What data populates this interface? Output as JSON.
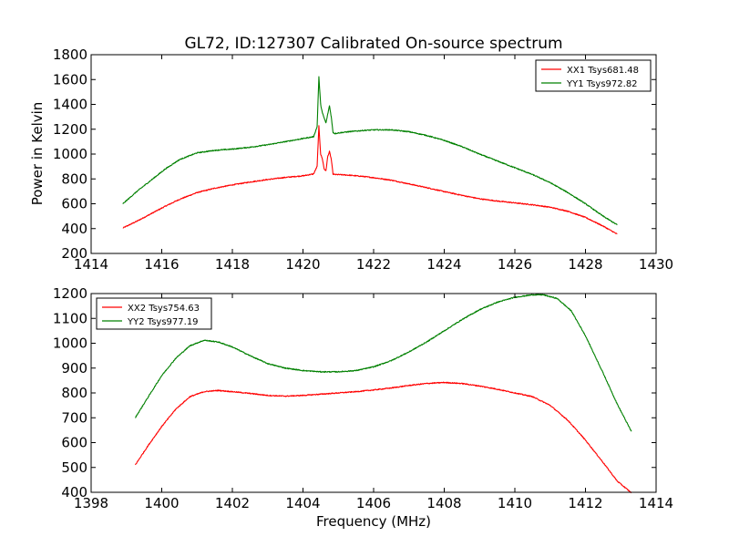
{
  "figure": {
    "title": "GL72, ID:127307 Calibrated On-source spectrum",
    "xlabel": "Frequency (MHz)",
    "ylabel": "Power in Kelvin"
  },
  "chart_data": [
    {
      "type": "line",
      "title": "GL72, ID:127307 Calibrated On-source spectrum",
      "xlabel": "",
      "ylabel": "Power in Kelvin",
      "xlim": [
        1414,
        1430
      ],
      "ylim": [
        200,
        1800
      ],
      "xticks": [
        1414,
        1416,
        1418,
        1420,
        1422,
        1424,
        1426,
        1428,
        1430
      ],
      "yticks": [
        200,
        400,
        600,
        800,
        1000,
        1200,
        1400,
        1600,
        1800
      ],
      "legend": "top-right",
      "grid": false,
      "series": [
        {
          "name": "XX1 Tsys681.48",
          "color": "#ff0000",
          "x": [
            1414.9,
            1415.3,
            1415.7,
            1416.1,
            1416.5,
            1417.0,
            1417.5,
            1418.0,
            1418.5,
            1419.0,
            1419.5,
            1420.0,
            1420.3,
            1420.4,
            1420.45,
            1420.5,
            1420.55,
            1420.6,
            1420.65,
            1420.7,
            1420.75,
            1420.8,
            1420.85,
            1420.9,
            1421.0,
            1421.3,
            1421.7,
            1422.0,
            1422.5,
            1423.0,
            1423.5,
            1424.0,
            1424.5,
            1425.0,
            1425.5,
            1426.0,
            1426.5,
            1427.0,
            1427.5,
            1428.0,
            1428.5,
            1428.9
          ],
          "values": [
            405,
            460,
            520,
            580,
            635,
            690,
            725,
            752,
            775,
            795,
            812,
            825,
            840,
            900,
            1225,
            1000,
            960,
            880,
            865,
            980,
            1020,
            960,
            840,
            835,
            835,
            830,
            820,
            810,
            790,
            760,
            730,
            698,
            668,
            640,
            622,
            607,
            592,
            572,
            540,
            490,
            420,
            355
          ]
        },
        {
          "name": "YY1 Tsys972.82",
          "color": "#008000",
          "x": [
            1414.9,
            1415.3,
            1415.7,
            1416.1,
            1416.5,
            1417.0,
            1417.5,
            1418.0,
            1418.5,
            1419.0,
            1419.5,
            1420.0,
            1420.3,
            1420.4,
            1420.45,
            1420.5,
            1420.55,
            1420.6,
            1420.65,
            1420.7,
            1420.75,
            1420.8,
            1420.85,
            1420.9,
            1421.0,
            1421.3,
            1421.7,
            1422.0,
            1422.5,
            1423.0,
            1423.5,
            1424.0,
            1424.5,
            1425.0,
            1425.5,
            1426.0,
            1426.5,
            1427.0,
            1427.5,
            1428.0,
            1428.5,
            1428.9
          ],
          "values": [
            600,
            700,
            790,
            880,
            955,
            1010,
            1030,
            1040,
            1055,
            1075,
            1100,
            1125,
            1140,
            1220,
            1620,
            1400,
            1330,
            1290,
            1250,
            1320,
            1390,
            1300,
            1175,
            1165,
            1170,
            1180,
            1190,
            1195,
            1195,
            1180,
            1150,
            1110,
            1060,
            1000,
            945,
            890,
            835,
            770,
            690,
            600,
            500,
            430
          ]
        }
      ]
    },
    {
      "type": "line",
      "title": "",
      "xlabel": "Frequency (MHz)",
      "ylabel": "",
      "xlim": [
        1398,
        1414
      ],
      "ylim": [
        400,
        1200
      ],
      "xticks": [
        1398,
        1400,
        1402,
        1404,
        1406,
        1408,
        1410,
        1412,
        1414
      ],
      "yticks": [
        400,
        500,
        600,
        700,
        800,
        900,
        1000,
        1100,
        1200
      ],
      "legend": "top-left",
      "grid": false,
      "series": [
        {
          "name": "XX2 Tsys754.63",
          "color": "#ff0000",
          "x": [
            1399.25,
            1399.6,
            1400.0,
            1400.4,
            1400.8,
            1401.2,
            1401.6,
            1402.0,
            1402.5,
            1403.0,
            1403.5,
            1404.0,
            1404.5,
            1405.0,
            1405.5,
            1406.0,
            1406.5,
            1407.0,
            1407.5,
            1408.0,
            1408.5,
            1409.0,
            1409.5,
            1410.0,
            1410.5,
            1411.0,
            1411.5,
            1412.0,
            1412.5,
            1412.9,
            1413.3
          ],
          "values": [
            510,
            585,
            665,
            735,
            785,
            805,
            810,
            805,
            798,
            790,
            787,
            790,
            795,
            800,
            805,
            812,
            820,
            830,
            838,
            842,
            838,
            828,
            815,
            800,
            785,
            750,
            690,
            610,
            520,
            445,
            398
          ]
        },
        {
          "name": "YY2 Tsys977.19",
          "color": "#008000",
          "x": [
            1399.25,
            1399.6,
            1400.0,
            1400.4,
            1400.8,
            1401.2,
            1401.6,
            1402.0,
            1402.5,
            1403.0,
            1403.5,
            1404.0,
            1404.5,
            1405.0,
            1405.5,
            1406.0,
            1406.5,
            1407.0,
            1407.5,
            1408.0,
            1408.5,
            1409.0,
            1409.5,
            1410.0,
            1410.5,
            1410.8,
            1411.2,
            1411.6,
            1412.0,
            1412.5,
            1412.9,
            1413.3
          ],
          "values": [
            700,
            780,
            870,
            940,
            990,
            1012,
            1005,
            985,
            950,
            918,
            900,
            890,
            885,
            885,
            890,
            905,
            930,
            965,
            1005,
            1050,
            1095,
            1135,
            1165,
            1185,
            1195,
            1195,
            1180,
            1130,
            1030,
            880,
            755,
            645
          ]
        }
      ]
    }
  ]
}
